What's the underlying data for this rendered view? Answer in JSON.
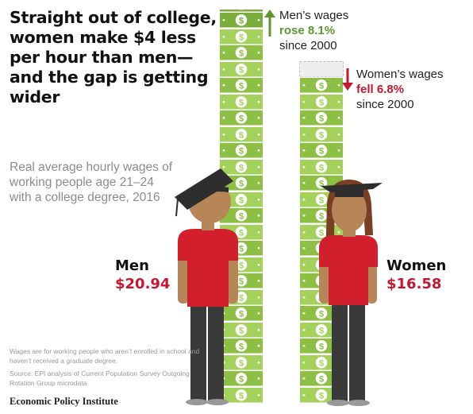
{
  "title": "Straight out of college, women make $4 less per hour than men—and the gap is getting wider",
  "subtitle": "Real average hourly wages of working people age 21–24 with a college degree, 2016",
  "men": {
    "name": "Men",
    "value_label": "$20.94"
  },
  "women": {
    "name": "Women",
    "value_label": "$16.58"
  },
  "men_callout": {
    "line1": "Men’s wages",
    "line2": "rose 8.1%",
    "line3": "since 2000"
  },
  "women_callout": {
    "line1": "Women’s wages",
    "line2": "fell 6.8%",
    "line3": "since 2000"
  },
  "footnote": "Wages are for working people who aren’t enrolled in school and haven’t received a graduate degree.",
  "source": "Source: EPI analysis of Current Population Survey Outgoing Rotation Group microdata",
  "brand": "Economic Policy Institute",
  "bill_symbol": "$",
  "colors": {
    "bill": "#a3d15c",
    "bill_dark": "#8cbf44",
    "bill_gain": "#7aac3c",
    "bill_lost": "#eeeeee",
    "men_accent": "#5e9630",
    "women_accent": "#c4182f",
    "shirt": "#d21f2e",
    "skin": "#b68658",
    "pants": "#3a3a3a",
    "cap": "#2e2e2e",
    "hair": "#7a3f22"
  },
  "chart_data": {
    "type": "bar",
    "categories": [
      "Men",
      "Women"
    ],
    "values": [
      20.94,
      16.58
    ],
    "unit": "$ per hour",
    "change_since_2000_pct": [
      8.1,
      -6.8
    ]
  }
}
